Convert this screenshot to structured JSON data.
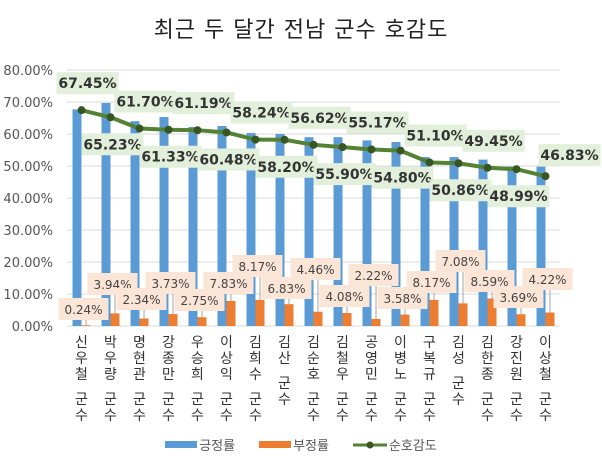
{
  "chart_data": {
    "type": "bar+line",
    "title": "최근 두 달간 전남 군수 호감도",
    "categories": [
      "신우철 군수",
      "박우량 군수",
      "명현관 군수",
      "강종만 군수",
      "우승희 군수",
      "이상익 군수",
      "김희수 군수",
      "김산 군수",
      "김순호 군수",
      "김철우 군수",
      "공영민 군수",
      "이병노 군수",
      "구복규 군수",
      "김성 군수",
      "김한종 군수",
      "강진원 군수",
      "이상철 군수"
    ],
    "series": [
      {
        "name": "긍정률",
        "type": "bar",
        "color": "#5b9bd5",
        "values": [
          67.7,
          69.7,
          64.0,
          65.3,
          62.2,
          62.5,
          60.3,
          60.0,
          59.0,
          59.0,
          58.0,
          57.5,
          52.8,
          52.8,
          52.0,
          49.8,
          49.8
        ]
      },
      {
        "name": "부정률",
        "type": "bar",
        "color": "#ed7d31",
        "values": [
          0.24,
          3.94,
          2.34,
          3.73,
          2.75,
          7.83,
          8.17,
          6.83,
          4.46,
          4.08,
          2.22,
          3.58,
          8.17,
          7.08,
          8.59,
          3.69,
          4.22
        ],
        "labels": [
          "0.24%",
          "3.94%",
          "2.34%",
          "3.73%",
          "2.75%",
          "7.83%",
          "8.17%",
          "6.83%",
          "4.46%",
          "4.08%",
          "2.22%",
          "3.58%",
          "8.17%",
          "7.08%",
          "8.59%",
          "3.69%",
          "4.22%"
        ]
      },
      {
        "name": "순호감도",
        "type": "line",
        "color": "#548235",
        "values": [
          67.45,
          65.23,
          61.7,
          61.33,
          61.19,
          60.48,
          58.24,
          58.2,
          56.62,
          55.9,
          55.17,
          54.8,
          51.1,
          50.86,
          49.45,
          48.99,
          46.83
        ],
        "labels": [
          "67.45%",
          "65.23%",
          "61.70%",
          "61.33%",
          "61.19%",
          "60.48%",
          "58.24%",
          "58.20%",
          "56.62%",
          "55.90%",
          "55.17%",
          "54.80%",
          "51.10%",
          "50.86%",
          "49.45%",
          "48.99%",
          "46.83%"
        ]
      }
    ],
    "ylim": [
      0,
      80
    ],
    "yticks": [
      "0.00%",
      "10.00%",
      "20.00%",
      "30.00%",
      "40.00%",
      "50.00%",
      "60.00%",
      "70.00%",
      "80.00%"
    ],
    "grid": true,
    "legend": "bottom"
  }
}
